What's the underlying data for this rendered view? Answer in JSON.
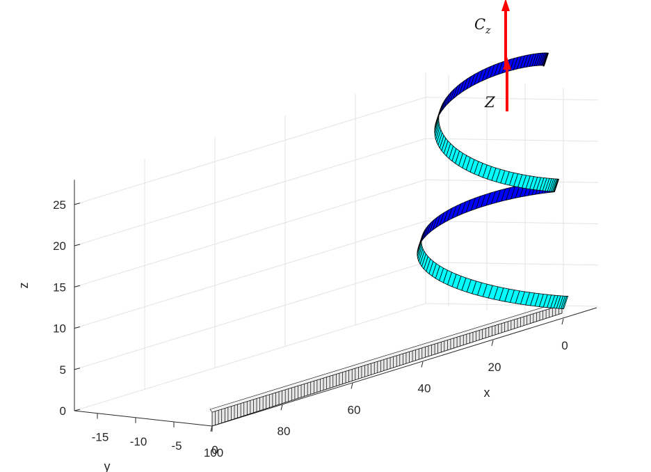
{
  "chart_data": {
    "type": "3d-surface",
    "title": "",
    "xlabel": "x",
    "ylabel": "y",
    "zlabel": "z",
    "xticks": [
      "0",
      "20",
      "40",
      "60",
      "80",
      "100"
    ],
    "yticks": [
      "-15",
      "-10",
      "-5",
      "0"
    ],
    "zticks": [
      "0",
      "5",
      "10",
      "15",
      "20",
      "25"
    ],
    "xlim": [
      0,
      100
    ],
    "ylim": [
      -18,
      0
    ],
    "zlim": [
      0,
      28
    ],
    "grid": true,
    "description_of_mark": "rectangular ribbon lying straight along the x axis at z=0 from x=100 to x=0, then coiling into a helix that rises to z≈28",
    "straight_segment": {
      "x_from": 100,
      "x_to": 0,
      "z": 0,
      "face_color": "#e6e6e6"
    },
    "helix_segment": {
      "z_from": 0,
      "z_to": 28,
      "turns": 2,
      "face_color": "#00ffff",
      "inner_face_color": "#0000ff",
      "edge_color": "#000000"
    },
    "annotations": [
      {
        "label": "C",
        "subscript": "z",
        "color": "#ff0000"
      },
      {
        "label": "Z",
        "subscript": "",
        "color": "#ff0000"
      }
    ]
  }
}
